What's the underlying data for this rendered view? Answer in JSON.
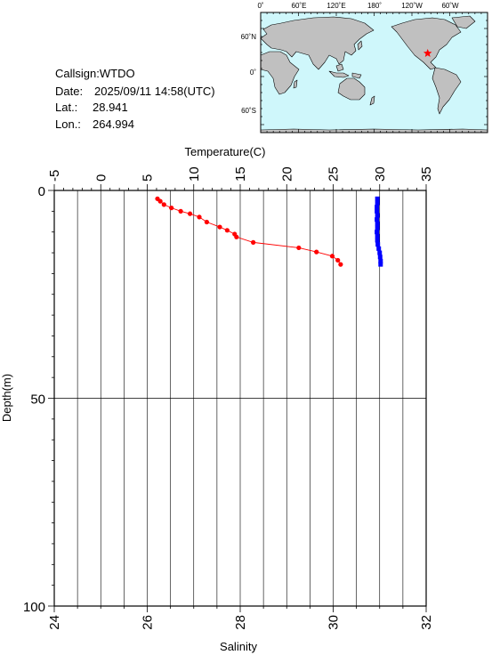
{
  "info": {
    "callsign": "Callsign:WTDO",
    "date_label": "Date:",
    "date_value": "2025/09/11 14:58(UTC)",
    "lat_label": "Lat.:",
    "lat_value": "28.941",
    "lon_label": "Lon.:",
    "lon_value": "264.994"
  },
  "map": {
    "top_ticks": [
      "0˚",
      "60˚E",
      "120˚E",
      "180˚",
      "120˚W",
      "60˚W"
    ],
    "left_ticks": [
      "60˚N",
      "0˚",
      "60˚S"
    ],
    "ocean_color": "#cff7fb",
    "land_color": "#c0c0c0",
    "marker_color": "#ff0000",
    "marker_lon": 264.994,
    "marker_lat": 28.941
  },
  "chart_data": {
    "type": "line",
    "title": "",
    "top_axis": {
      "label": "Temperature(C)",
      "range": [
        -5,
        35
      ],
      "ticks": [
        "-5",
        "0",
        "5",
        "10",
        "15",
        "20",
        "25",
        "30",
        "35"
      ]
    },
    "bottom_axis": {
      "label": "Salinity",
      "range": [
        24,
        32
      ],
      "ticks": [
        "24",
        "26",
        "28",
        "30",
        "32"
      ]
    },
    "y_axis": {
      "label": "Depth(m)",
      "range": [
        0,
        100
      ],
      "inverted": true,
      "ticks": [
        "0",
        "50",
        "100"
      ]
    },
    "grid": true,
    "series": [
      {
        "axis": "temperature",
        "color": "#ff0000",
        "points": [
          {
            "value": 6.1,
            "depth": 2.0
          },
          {
            "value": 6.4,
            "depth": 2.6
          },
          {
            "value": 6.8,
            "depth": 3.4
          },
          {
            "value": 7.6,
            "depth": 4.2
          },
          {
            "value": 8.6,
            "depth": 5.0
          },
          {
            "value": 9.6,
            "depth": 5.6
          },
          {
            "value": 10.6,
            "depth": 6.4
          },
          {
            "value": 11.4,
            "depth": 7.6
          },
          {
            "value": 12.8,
            "depth": 8.8
          },
          {
            "value": 13.6,
            "depth": 9.6
          },
          {
            "value": 14.4,
            "depth": 10.5
          },
          {
            "value": 14.6,
            "depth": 11.2
          },
          {
            "value": 16.4,
            "depth": 12.5
          },
          {
            "value": 21.3,
            "depth": 13.8
          },
          {
            "value": 23.2,
            "depth": 14.8
          },
          {
            "value": 24.9,
            "depth": 15.8
          },
          {
            "value": 25.5,
            "depth": 16.8
          },
          {
            "value": 25.8,
            "depth": 17.8
          }
        ]
      },
      {
        "axis": "salinity",
        "color": "#0000ff",
        "points": [
          {
            "value": 30.95,
            "depth": 2.0
          },
          {
            "value": 30.95,
            "depth": 3.0
          },
          {
            "value": 30.94,
            "depth": 4.0
          },
          {
            "value": 30.94,
            "depth": 5.0
          },
          {
            "value": 30.95,
            "depth": 6.0
          },
          {
            "value": 30.94,
            "depth": 7.0
          },
          {
            "value": 30.95,
            "depth": 8.0
          },
          {
            "value": 30.95,
            "depth": 9.0
          },
          {
            "value": 30.94,
            "depth": 10.0
          },
          {
            "value": 30.95,
            "depth": 11.0
          },
          {
            "value": 30.95,
            "depth": 12.0
          },
          {
            "value": 30.96,
            "depth": 13.0
          },
          {
            "value": 30.98,
            "depth": 14.0
          },
          {
            "value": 31.0,
            "depth": 15.0
          },
          {
            "value": 31.01,
            "depth": 16.0
          },
          {
            "value": 31.02,
            "depth": 17.0
          },
          {
            "value": 31.02,
            "depth": 17.8
          }
        ]
      }
    ]
  }
}
